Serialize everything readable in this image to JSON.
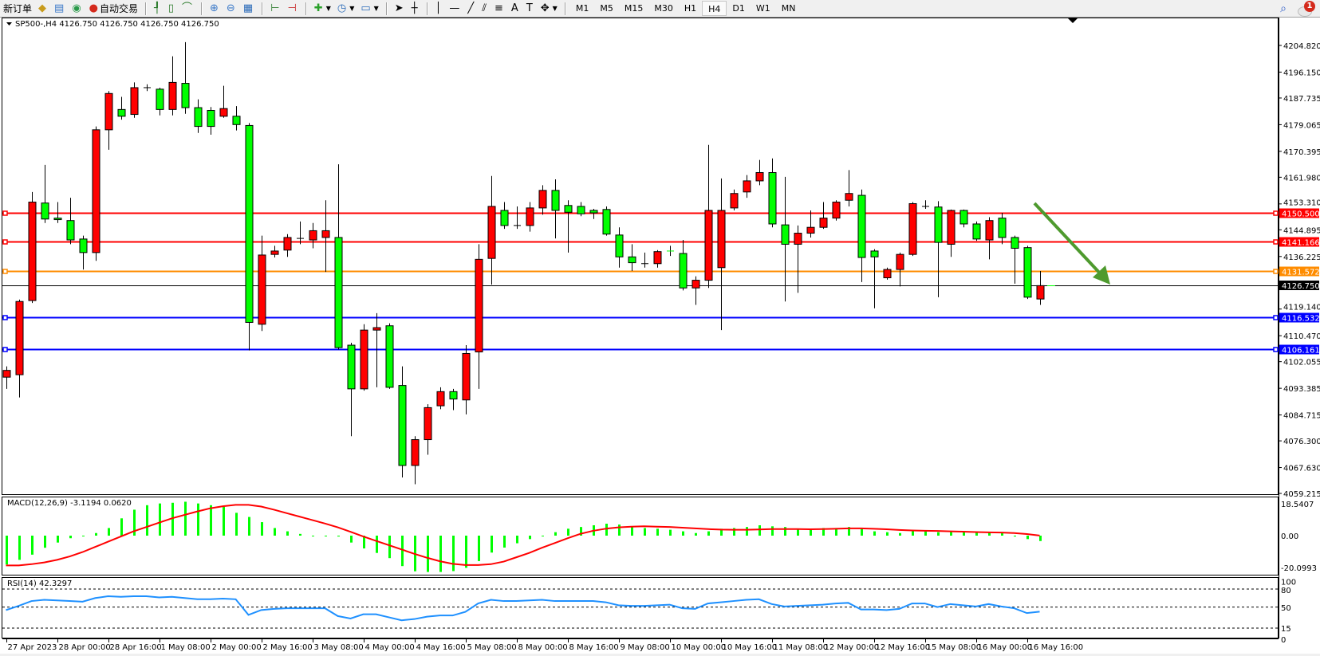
{
  "toolbar": {
    "new_order_label": "新订单",
    "auto_trading_label": "自动交易",
    "icons_left": [
      "market-watch-icon",
      "data-window-icon",
      "navigator-icon"
    ],
    "chart_icons": [
      "bar-chart-icon",
      "candlestick-chart-icon",
      "line-chart-icon",
      "zoom-in-icon",
      "zoom-out-icon",
      "tile-windows-icon",
      "autoscroll-icon",
      "chart-shift-icon",
      "indicators-icon",
      "periods-icon",
      "templates-icon"
    ],
    "draw_icons": [
      "cursor-icon",
      "crosshair-icon",
      "vertical-line-icon",
      "horizontal-line-icon",
      "trendline-icon",
      "equidistant-channel-icon",
      "fibonacci-icon",
      "text-icon",
      "text-label-icon",
      "arrows-icon"
    ],
    "timeframes": [
      "M1",
      "M5",
      "M15",
      "M30",
      "H1",
      "H4",
      "D1",
      "W1",
      "MN"
    ],
    "active_timeframe": "H4",
    "notification_count": "1"
  },
  "chart": {
    "header": "SP500-,H4  4126.750 4126.750 4126.750 4126.750",
    "symbol": "SP500-",
    "timeframe": "H4",
    "colors": {
      "bull": "#ff0000",
      "bear": "#00ff00",
      "doji": "#000000",
      "macd_hist": "#00ff00",
      "macd_signal": "#ff0000",
      "rsi": "#1e90ff",
      "arrow": "#4e9a2e"
    },
    "price_ticks": [
      "4204.820",
      "4196.150",
      "4187.735",
      "4179.065",
      "4170.395",
      "4161.980",
      "4153.310",
      "4144.895",
      "4136.225",
      "4119.140",
      "4110.470",
      "4102.055",
      "4093.385",
      "4084.715",
      "4076.300",
      "4067.630",
      "4059.215"
    ],
    "levels": [
      {
        "price": "4150.500",
        "color": "#ff0000"
      },
      {
        "price": "4141.166",
        "color": "#ff0000"
      },
      {
        "price": "4131.572",
        "color": "#ff8c00"
      },
      {
        "price": "4116.532",
        "color": "#0000ff"
      },
      {
        "price": "4106.161",
        "color": "#0000ff"
      }
    ],
    "current_price": "4126.750",
    "arrow": {
      "from_price": 4153.0,
      "to_price": 4127.0,
      "direction": "down"
    },
    "time_labels": [
      "27 Apr 2023",
      "28 Apr 00:00",
      "28 Apr 16:00",
      "1 May 08:00",
      "2 May 00:00",
      "2 May 16:00",
      "3 May 08:00",
      "4 May 00:00",
      "4 May 16:00",
      "5 May 08:00",
      "8 May 00:00",
      "8 May 16:00",
      "9 May 08:00",
      "10 May 00:00",
      "10 May 16:00",
      "11 May 08:00",
      "12 May 00:00",
      "12 May 16:00",
      "15 May 08:00",
      "16 May 00:00",
      "16 May 16:00"
    ]
  },
  "chart_data": {
    "type": "candlestick",
    "ohlc": [
      [
        4097.0,
        4100.5,
        4093.2,
        4099.2
      ],
      [
        4097.8,
        4122.2,
        4090.4,
        4121.6
      ],
      [
        4121.9,
        4157.2,
        4121.1,
        4153.9
      ],
      [
        4153.6,
        4166.0,
        4147.1,
        4148.4
      ],
      [
        4148.7,
        4153.9,
        4147.1,
        4148.2
      ],
      [
        4147.9,
        4155.3,
        4140.2,
        4141.6
      ],
      [
        4141.9,
        4143.0,
        4132.0,
        4137.5
      ],
      [
        4137.5,
        4178.5,
        4134.8,
        4177.4
      ],
      [
        4177.4,
        4190.0,
        4170.9,
        4189.2
      ],
      [
        4184.0,
        4188.1,
        4180.7,
        4181.8
      ],
      [
        4182.4,
        4192.8,
        4181.3,
        4191.1
      ],
      [
        4190.9,
        4192.2,
        4190.0,
        4191.1
      ],
      [
        4190.6,
        4191.1,
        4182.1,
        4184.0
      ],
      [
        4184.0,
        4201.3,
        4182.1,
        4192.8
      ],
      [
        4192.5,
        4205.9,
        4182.6,
        4184.6
      ],
      [
        4184.6,
        4187.3,
        4176.4,
        4178.5
      ],
      [
        4183.7,
        4184.8,
        4175.8,
        4178.5
      ],
      [
        4181.8,
        4191.7,
        4181.3,
        4184.3
      ],
      [
        4181.8,
        4185.1,
        4177.2,
        4179.1
      ],
      [
        4178.8,
        4179.6,
        4105.7,
        4114.8
      ],
      [
        4114.2,
        4143.0,
        4112.0,
        4136.7
      ],
      [
        4136.9,
        4139.7,
        4135.9,
        4138.0
      ],
      [
        4138.3,
        4143.5,
        4136.1,
        4142.4
      ],
      [
        4142.1,
        4147.6,
        4140.2,
        4141.9
      ],
      [
        4141.6,
        4147.1,
        4138.9,
        4144.6
      ],
      [
        4142.4,
        4154.5,
        4131.2,
        4144.6
      ],
      [
        4142.4,
        4166.2,
        4106.0,
        4106.6
      ],
      [
        4107.4,
        4108.2,
        4077.8,
        4093.2
      ],
      [
        4093.2,
        4114.2,
        4092.6,
        4112.3
      ],
      [
        4112.3,
        4117.8,
        4093.7,
        4113.1
      ],
      [
        4113.7,
        4114.5,
        4093.2,
        4093.7
      ],
      [
        4094.3,
        4100.5,
        4064.4,
        4068.3
      ],
      [
        4068.3,
        4077.8,
        4062.2,
        4076.7
      ],
      [
        4076.7,
        4088.2,
        4071.8,
        4087.1
      ],
      [
        4087.7,
        4093.7,
        4086.6,
        4092.3
      ],
      [
        4092.3,
        4093.2,
        4086.3,
        4089.9
      ],
      [
        4089.6,
        4107.4,
        4084.9,
        4104.7
      ],
      [
        4105.2,
        4140.2,
        4093.2,
        4135.3
      ],
      [
        4135.6,
        4162.4,
        4127.1,
        4152.5
      ],
      [
        4151.2,
        4153.9,
        4145.2,
        4146.3
      ],
      [
        4146.3,
        4152.5,
        4145.2,
        4146.3
      ],
      [
        4146.3,
        4153.9,
        4144.3,
        4152.0
      ],
      [
        4152.0,
        4159.4,
        4149.8,
        4157.7
      ],
      [
        4157.7,
        4161.3,
        4142.1,
        4151.2
      ],
      [
        4152.8,
        4154.5,
        4137.5,
        4150.6
      ],
      [
        4152.5,
        4153.9,
        4149.3,
        4150.1
      ],
      [
        4151.2,
        4151.7,
        4148.4,
        4150.4
      ],
      [
        4151.5,
        4152.5,
        4143.0,
        4143.5
      ],
      [
        4143.2,
        4145.7,
        4132.6,
        4136.1
      ],
      [
        4136.1,
        4140.2,
        4131.5,
        4134.2
      ],
      [
        4133.9,
        4137.5,
        4132.6,
        4133.9
      ],
      [
        4133.9,
        4138.3,
        4132.6,
        4137.8
      ],
      [
        4138.0,
        4139.7,
        4136.4,
        4138.0
      ],
      [
        4137.2,
        4141.6,
        4125.2,
        4126.0
      ],
      [
        4126.0,
        4129.8,
        4120.5,
        4128.5
      ],
      [
        4128.5,
        4172.5,
        4126.0,
        4151.2
      ],
      [
        4132.6,
        4161.6,
        4112.3,
        4151.2
      ],
      [
        4152.0,
        4158.0,
        4151.2,
        4156.7
      ],
      [
        4157.2,
        4162.7,
        4155.3,
        4160.8
      ],
      [
        4160.8,
        4167.6,
        4159.4,
        4163.5
      ],
      [
        4163.5,
        4168.1,
        4145.7,
        4146.8
      ],
      [
        4146.5,
        4162.1,
        4121.6,
        4140.2
      ],
      [
        4140.2,
        4146.3,
        4124.4,
        4143.8
      ],
      [
        4143.8,
        4151.2,
        4142.4,
        4145.7
      ],
      [
        4145.7,
        4153.9,
        4145.2,
        4148.7
      ],
      [
        4148.7,
        4154.5,
        4147.9,
        4153.9
      ],
      [
        4154.5,
        4164.3,
        4152.5,
        4156.7
      ],
      [
        4156.1,
        4158.0,
        4127.9,
        4135.9
      ],
      [
        4138.0,
        4138.6,
        4119.4,
        4136.1
      ],
      [
        4129.3,
        4132.6,
        4128.7,
        4132.0
      ],
      [
        4132.0,
        4137.5,
        4126.5,
        4136.9
      ],
      [
        4136.9,
        4153.9,
        4136.4,
        4153.4
      ],
      [
        4152.5,
        4154.5,
        4151.7,
        4152.5
      ],
      [
        4152.3,
        4154.2,
        4123.0,
        4140.8
      ],
      [
        4140.2,
        4151.5,
        4136.1,
        4151.2
      ],
      [
        4151.2,
        4151.5,
        4145.7,
        4146.8
      ],
      [
        4146.8,
        4147.6,
        4141.3,
        4141.9
      ],
      [
        4141.6,
        4149.0,
        4135.3,
        4147.9
      ],
      [
        4148.7,
        4150.4,
        4140.2,
        4142.4
      ],
      [
        4142.4,
        4143.0,
        4127.4,
        4138.9
      ],
      [
        4139.1,
        4139.7,
        4122.4,
        4123.0
      ],
      [
        4122.4,
        4131.5,
        4120.5,
        4126.75
      ]
    ],
    "price_range": [
      4059.215,
      4204.82
    ],
    "macd": {
      "label": "MACD(12,26,9) -3.1194 0.0620",
      "ticks": [
        "18.5407",
        "0.00",
        "-20.0993"
      ],
      "histogram": [
        -16.7,
        -14,
        -11,
        -7,
        -4,
        -1.5,
        0,
        1.5,
        4.4,
        10,
        15,
        17.6,
        18.6,
        19,
        19.6,
        18.6,
        17.6,
        16.7,
        13.2,
        10.8,
        7.8,
        4.4,
        2.5,
        1,
        0,
        -0.2,
        -0.5,
        -4,
        -7.4,
        -10,
        -13,
        -17.6,
        -20.6,
        -21,
        -21,
        -20.5,
        -18.6,
        -14.7,
        -9.8,
        -6.9,
        -4.4,
        -2,
        0,
        2,
        4,
        5,
        6,
        6.9,
        6.4,
        5.4,
        4.4,
        4,
        3.4,
        2.5,
        1.5,
        2.5,
        4,
        4.4,
        5,
        6,
        5.4,
        5,
        4,
        4,
        4.4,
        4.4,
        5,
        4,
        2.5,
        2,
        1.5,
        3,
        3,
        2,
        2.5,
        2,
        2,
        2,
        2,
        -0.5,
        -2,
        -3.1194
      ],
      "signal": [
        -17.2,
        -17.2,
        -16.5,
        -15.5,
        -14,
        -12,
        -9.5,
        -6.5,
        -3.5,
        -0.5,
        2.5,
        5,
        7.5,
        10,
        12,
        14,
        15.8,
        17,
        17.8,
        17.8,
        16.8,
        15,
        13,
        11,
        9,
        7,
        4.8,
        2.2,
        -0.5,
        -3,
        -5.5,
        -8,
        -10.5,
        -12.8,
        -14.8,
        -16.3,
        -17,
        -17,
        -16.5,
        -15,
        -12.5,
        -10,
        -7,
        -4.3,
        -1.5,
        1,
        2.8,
        4,
        4.8,
        5.2,
        5.4,
        5.2,
        5,
        4.6,
        4.2,
        3.8,
        3.5,
        3.4,
        3.4,
        3.6,
        3.8,
        3.8,
        3.8,
        3.7,
        3.8,
        4,
        4.2,
        4.2,
        4,
        3.7,
        3.3,
        3,
        2.8,
        2.7,
        2.5,
        2.3,
        2.1,
        1.9,
        1.8,
        1.5,
        0.9,
        0.062
      ],
      "range": [
        -20.0993,
        18.5407
      ]
    },
    "rsi": {
      "label": "RSI(14) 42.3297",
      "ticks": [
        "100",
        "80",
        "50",
        "15",
        "0"
      ],
      "levels": [
        80,
        50,
        15
      ],
      "values": [
        45,
        52,
        60,
        62,
        61,
        60,
        59,
        65,
        68,
        67,
        68,
        68,
        66,
        67,
        65,
        63,
        63,
        64,
        63,
        37,
        45,
        47,
        48,
        48,
        48,
        48,
        35,
        31,
        38,
        38,
        33,
        28,
        30,
        34,
        36,
        36,
        42,
        56,
        62,
        60,
        60,
        61,
        62,
        60,
        60,
        60,
        60,
        58,
        53,
        52,
        52,
        53,
        54,
        48,
        47,
        56,
        58,
        60,
        62,
        63,
        55,
        51,
        52,
        53,
        54,
        56,
        57,
        46,
        46,
        45,
        47,
        56,
        56,
        50,
        55,
        53,
        51,
        55,
        51,
        48,
        40,
        42.33
      ],
      "range": [
        0,
        100
      ]
    }
  }
}
